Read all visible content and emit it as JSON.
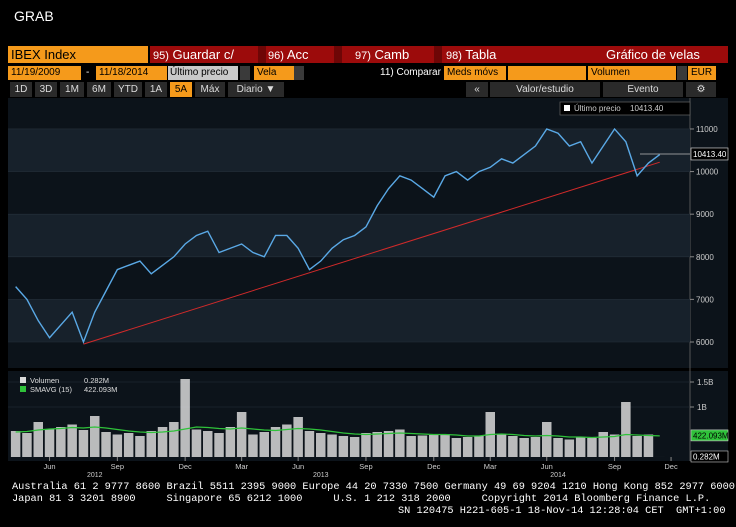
{
  "header": {
    "title": "GRAB",
    "ticker": "IBEX Index",
    "menu": [
      {
        "num": "95)",
        "label": "Guardar c/"
      },
      {
        "num": "96)",
        "label": "Acc"
      },
      {
        "num": "97)",
        "label": "Camb"
      },
      {
        "num": "98)",
        "label": "Tabla"
      }
    ],
    "chart_name": "Gráfico de velas"
  },
  "toolbar": {
    "start_date": "11/19/2009",
    "dash": "-",
    "end_date": "11/18/2014",
    "field": "Último precio",
    "style": "Vela",
    "compare": "11) Comparar",
    "moving_avg": "Meds móvs",
    "lower_study": "Volumen",
    "currency": "EUR",
    "periods": [
      "1D",
      "3D",
      "1M",
      "6M",
      "YTD",
      "1A",
      "5A",
      "Máx"
    ],
    "selected_period": 6,
    "frequency": "Diario ▼",
    "collapse": "«",
    "value_study": "Valor/estudio",
    "event": "Evento"
  },
  "chart_data": [
    {
      "type": "line",
      "categories": [
        null,
        null,
        null,
        "Jun",
        null,
        null,
        null,
        null,
        null,
        "Sep",
        null,
        null,
        null,
        null,
        null,
        "Dec",
        null,
        null,
        null,
        null,
        "Mar",
        null,
        null,
        null,
        null,
        "Jun",
        null,
        null,
        null,
        null,
        null,
        "Sep",
        null,
        null,
        null,
        null,
        null,
        "Dec",
        null,
        null,
        null,
        null,
        "Mar",
        null,
        null,
        null,
        null,
        "Jun",
        null,
        null,
        null,
        null,
        null,
        "Sep",
        null,
        null,
        null,
        null,
        "Dec",
        null
      ],
      "year_labels": [
        null,
        null,
        null,
        null,
        null,
        null,
        null,
        "2012",
        null,
        null,
        null,
        null,
        null,
        null,
        null,
        null,
        null,
        null,
        null,
        null,
        null,
        null,
        null,
        null,
        null,
        null,
        null,
        "2013",
        null,
        null,
        null,
        null,
        null,
        null,
        null,
        null,
        null,
        null,
        null,
        null,
        null,
        null,
        null,
        null,
        null,
        null,
        null,
        null,
        "2014",
        null,
        null,
        null,
        null,
        null,
        null,
        null,
        null,
        null,
        null,
        null
      ],
      "series": [
        {
          "name": "Último precio",
          "color": "#5aa9e6",
          "values": [
            7300,
            7000,
            6500,
            6100,
            6400,
            6700,
            6000,
            6700,
            7200,
            7700,
            7800,
            7900,
            7600,
            7800,
            8000,
            8300,
            8500,
            8600,
            8100,
            8200,
            8300,
            8100,
            8000,
            8500,
            8500,
            8200,
            7700,
            7900,
            8200,
            8400,
            8500,
            8700,
            9200,
            9600,
            9900,
            9800,
            9600,
            9400,
            9900,
            10000,
            9800,
            10000,
            10100,
            10300,
            10200,
            10400,
            10600,
            11000,
            10900,
            10600,
            10700,
            10200,
            10600,
            11000,
            10700,
            9900,
            10200,
            10400,
            null,
            null
          ]
        }
      ],
      "trend_line": {
        "color": "#d02a2a",
        "values": [
          null,
          null,
          null,
          null,
          null,
          null,
          5950,
          null,
          null,
          null,
          null,
          null,
          null,
          null,
          null,
          null,
          null,
          null,
          null,
          null,
          null,
          null,
          null,
          null,
          null,
          null,
          null,
          null,
          null,
          null,
          null,
          null,
          null,
          null,
          null,
          null,
          null,
          null,
          null,
          null,
          null,
          null,
          null,
          null,
          null,
          null,
          null,
          null,
          null,
          null,
          null,
          null,
          null,
          null,
          null,
          null,
          null,
          10220,
          null,
          null
        ]
      },
      "last_price": {
        "value": 10413.4,
        "label": "10413.40"
      },
      "ylim": [
        5460,
        11680
      ],
      "yticks": [
        6000,
        7000,
        8000,
        9000,
        10000,
        11000
      ],
      "grid": true
    },
    {
      "type": "bar",
      "series": [
        {
          "name": "Volumen",
          "color": "#d9d9d9",
          "values": [
            520000000,
            480000000,
            700000000,
            560000000,
            600000000,
            650000000,
            540000000,
            820000000,
            500000000,
            450000000,
            480000000,
            420000000,
            520000000,
            600000000,
            700000000,
            1560000000,
            550000000,
            520000000,
            480000000,
            600000000,
            900000000,
            450000000,
            500000000,
            600000000,
            650000000,
            800000000,
            520000000,
            480000000,
            450000000,
            420000000,
            400000000,
            480000000,
            500000000,
            520000000,
            550000000,
            420000000,
            430000000,
            440000000,
            460000000,
            380000000,
            400000000,
            420000000,
            900000000,
            450000000,
            420000000,
            380000000,
            400000000,
            700000000,
            380000000,
            350000000,
            400000000,
            380000000,
            500000000,
            450000000,
            1100000000,
            420000000,
            450000000,
            282000,
            null,
            null
          ],
          "last_value": {
            "value": 282000,
            "label": "0.282M"
          }
        },
        {
          "name": "SMAVG (15)",
          "color": "#2fc23a",
          "values": [
            500000000,
            510000000,
            540000000,
            560000000,
            570000000,
            590000000,
            580000000,
            600000000,
            580000000,
            550000000,
            520000000,
            500000000,
            490000000,
            500000000,
            520000000,
            560000000,
            600000000,
            590000000,
            570000000,
            560000000,
            580000000,
            560000000,
            540000000,
            530000000,
            550000000,
            570000000,
            560000000,
            540000000,
            510000000,
            480000000,
            460000000,
            450000000,
            460000000,
            470000000,
            480000000,
            470000000,
            460000000,
            450000000,
            450000000,
            440000000,
            420000000,
            420000000,
            450000000,
            460000000,
            450000000,
            430000000,
            420000000,
            430000000,
            420000000,
            400000000,
            400000000,
            390000000,
            400000000,
            410000000,
            450000000,
            440000000,
            430000000,
            422093000,
            null,
            null
          ],
          "last_value": {
            "value": 422093000,
            "label": "422.093M"
          }
        }
      ],
      "ylim": [
        0,
        1640000000
      ],
      "yticks": [
        {
          "value": 1000000000,
          "label": "1B"
        },
        {
          "value": 1500000000,
          "label": "1.5B"
        }
      ]
    }
  ],
  "footer": {
    "lines": [
      "Australia 61 2 9777 8600 Brazil 5511 2395 9000 Europe 44 20 7330 7500 Germany 49 69 9204 1210 Hong Kong 852 2977 6000",
      "Japan 81 3 3201 8900     Singapore 65 6212 1000     U.S. 1 212 318 2000     Copyright 2014 Bloomberg Finance L.P.",
      "SN 120475 H221-605-1 18-Nov-14 12:28:04 CET  GMT+1:00"
    ]
  }
}
